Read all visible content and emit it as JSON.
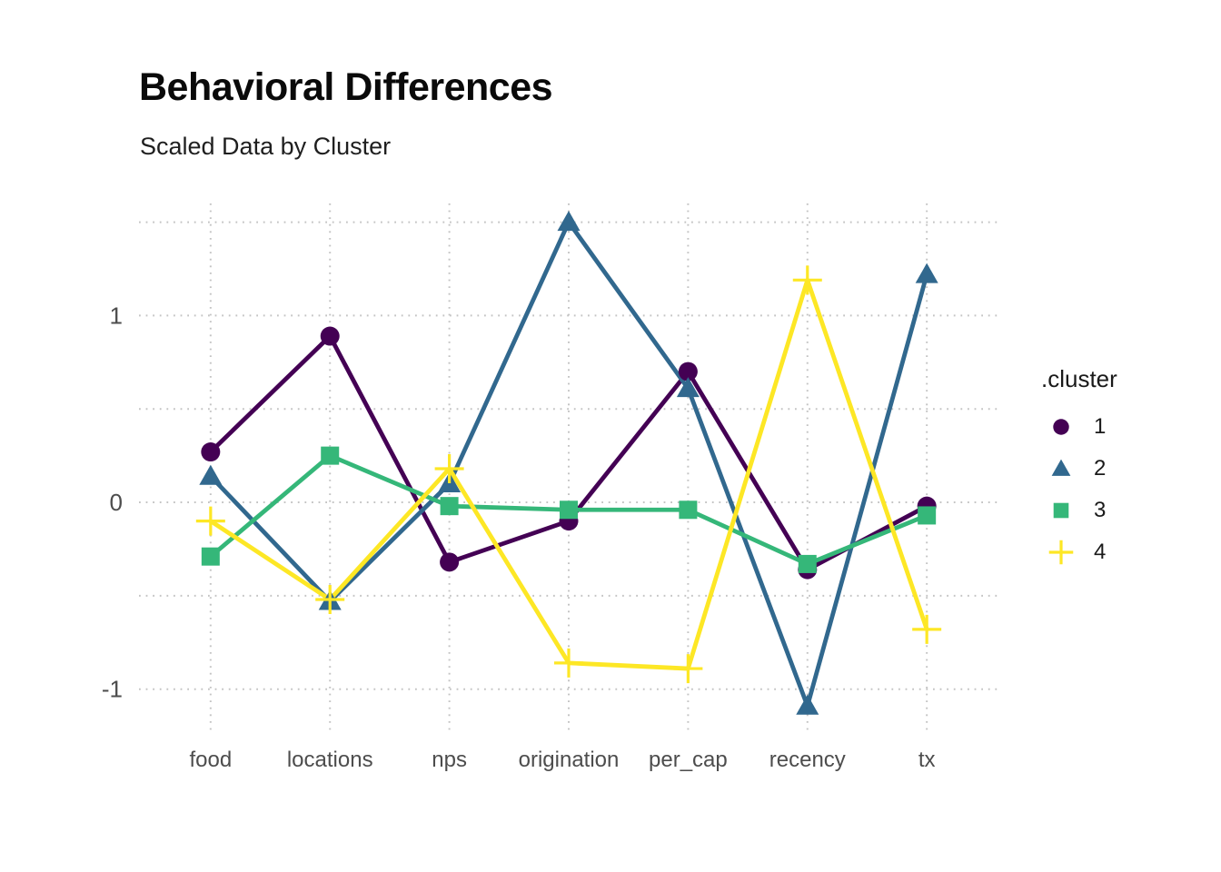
{
  "header": {
    "title": "Behavioral Differences",
    "subtitle": "Scaled Data by Cluster"
  },
  "legend": {
    "title": ".cluster",
    "entries": [
      "1",
      "2",
      "3",
      "4"
    ]
  },
  "chart_data": {
    "type": "line",
    "title": "Behavioral Differences",
    "subtitle": "Scaled Data by Cluster",
    "categories": [
      "food",
      "locations",
      "nps",
      "origination",
      "per_cap",
      "recency",
      "tx"
    ],
    "series": [
      {
        "name": "1",
        "color": "#440154",
        "marker": "circle",
        "values": [
          0.27,
          0.89,
          -0.32,
          -0.1,
          0.7,
          -0.36,
          -0.02
        ]
      },
      {
        "name": "2",
        "color": "#31688E",
        "marker": "triangle",
        "values": [
          0.14,
          -0.53,
          0.1,
          1.5,
          0.61,
          -1.09,
          1.22
        ]
      },
      {
        "name": "3",
        "color": "#35B779",
        "marker": "square",
        "values": [
          -0.29,
          0.25,
          -0.02,
          -0.04,
          -0.04,
          -0.33,
          -0.07
        ]
      },
      {
        "name": "4",
        "color": "#FDE725",
        "marker": "cross",
        "values": [
          -0.1,
          -0.52,
          0.18,
          -0.86,
          -0.89,
          1.19,
          -0.68
        ]
      }
    ],
    "xlabel": "",
    "ylabel": "",
    "ylim": [
      -1.23,
      1.6
    ],
    "y_ticks": [
      {
        "value": 1,
        "label": "1"
      },
      {
        "value": 0,
        "label": "0"
      },
      {
        "value": -1,
        "label": "-1"
      }
    ],
    "y_gridlines": [
      1.5,
      1,
      0.5,
      0,
      -0.5,
      -1
    ],
    "grid": "dotted",
    "grid_color": "#c4c4c4",
    "axis_text_color": "#4d4d4d",
    "legend_position": "right",
    "legend_title": ".cluster"
  }
}
